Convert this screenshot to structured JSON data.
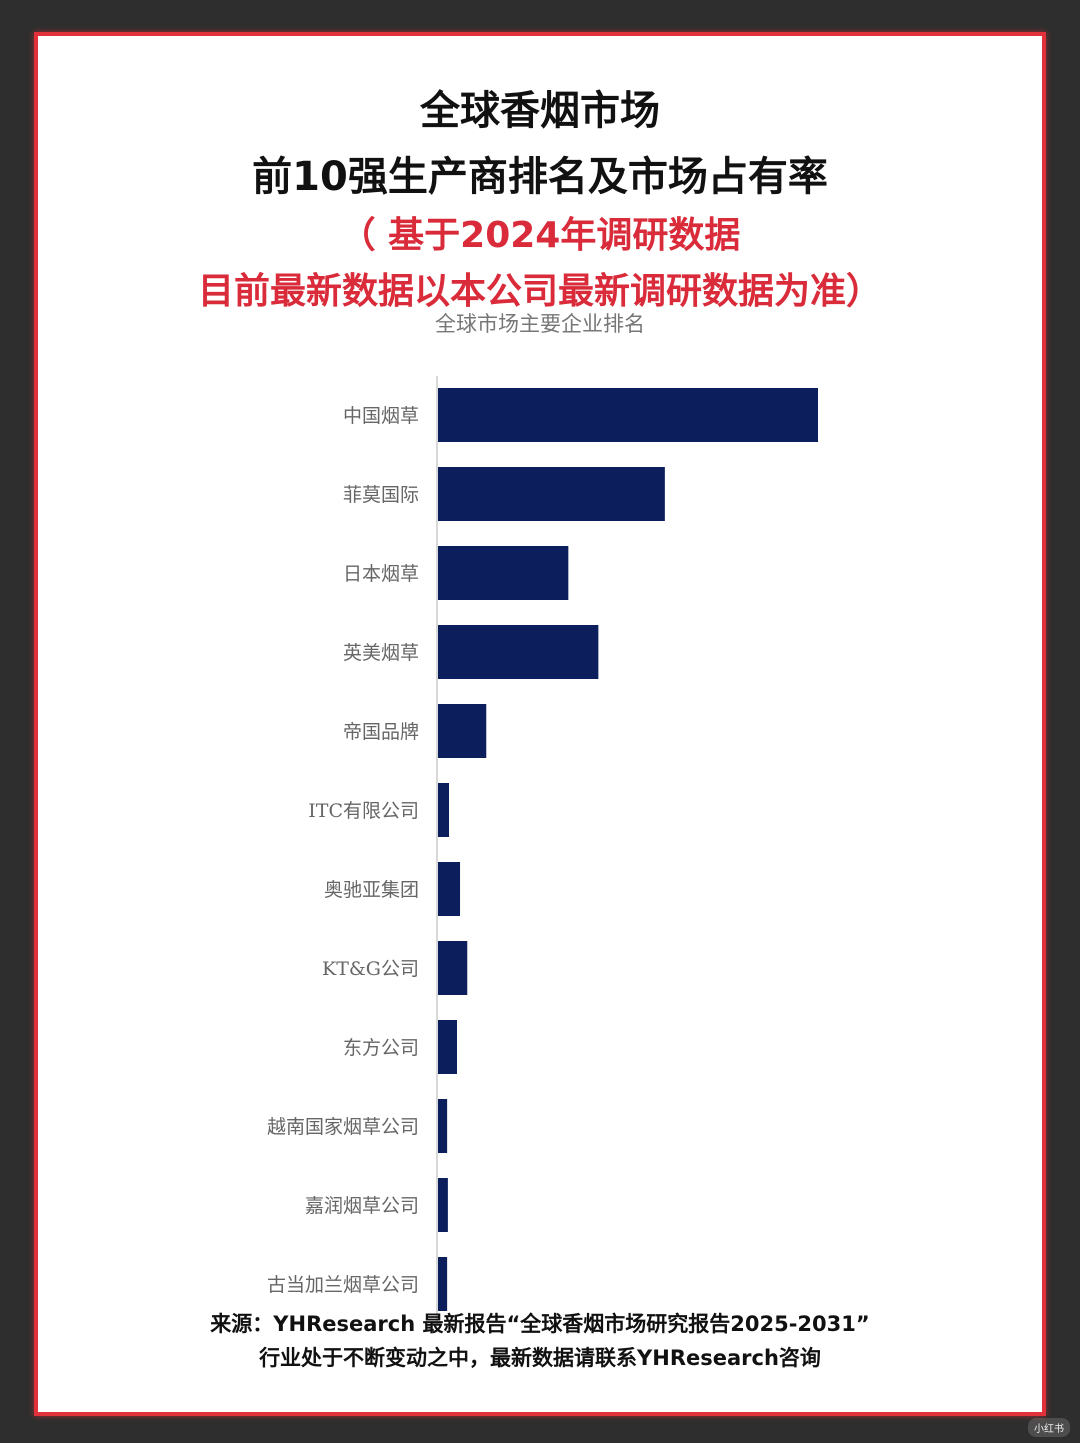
{
  "header": {
    "title_line1": "全球香烟市场",
    "title_line2": "前10强生产商排名及市场占有率",
    "note_line1": "（ 基于2024年调研数据",
    "note_line2": "目前最新数据以本公司最新调研数据为准）"
  },
  "colors": {
    "bar": "#0c1f5c",
    "border": "#e0303a",
    "note": "#d92b3a",
    "axis": "#cccccc"
  },
  "chart_data": {
    "type": "bar",
    "orientation": "horizontal",
    "title": "全球市场主要企业排名",
    "categories": [
      "中国烟草",
      "菲莫国际",
      "日本烟草",
      "英美烟草",
      "帝国品牌",
      "ITC有限公司",
      "奥驰亚集团",
      "KT&G公司",
      "东方公司",
      "越南国家烟草公司",
      "嘉润烟草公司",
      "古当加兰烟草公司"
    ],
    "values": [
      100,
      59.7,
      34.3,
      42.2,
      12.7,
      2.9,
      5.8,
      7.7,
      5.0,
      2.4,
      2.6,
      2.4
    ],
    "xlim": [
      0,
      150
    ],
    "axis_labels_visible": false,
    "grid": false
  },
  "footer": {
    "line1": "来源：YHResearch  最新报告“全球香烟市场研究报告2025-2031”",
    "line2": "行业处于不断变动之中，最新数据请联系YHResearch咨询"
  },
  "watermark": "小红书"
}
